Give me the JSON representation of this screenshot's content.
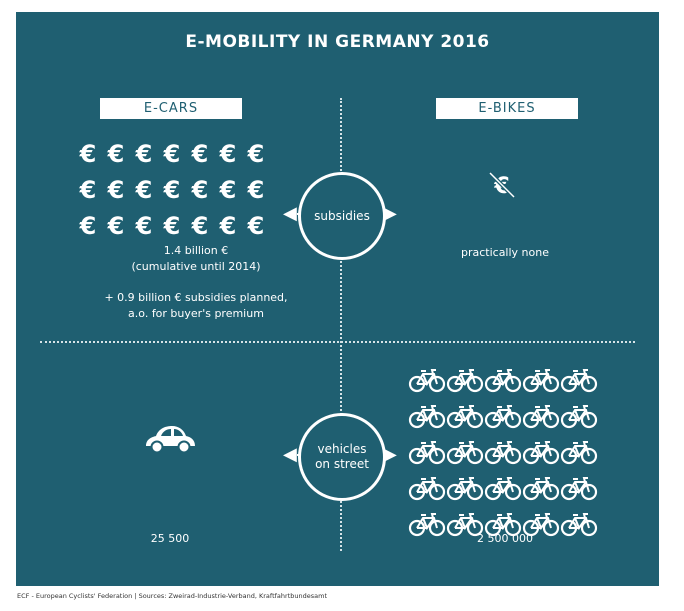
{
  "title": "E-MOBILITY IN GERMANY 2016",
  "headers": {
    "left": "E-CARS",
    "right": "E-BIKES"
  },
  "subsidies": {
    "circle_label": "subsidies",
    "ecars_line1": "1.4 billion €",
    "ecars_line2": "(cumulative until 2014)",
    "ecars_line3": "+ 0.9 billion € subsidies planned,",
    "ecars_line4": "a.o. for buyer's premium",
    "ebikes_text": "practically none",
    "euro_symbol": "€"
  },
  "vehicles": {
    "circle_label_1": "vehicles",
    "circle_label_2": "on street",
    "ecars_count": "25 500",
    "ebikes_count": "2 500 000"
  },
  "icons": {
    "euro_rows": 3,
    "euro_cols": 7,
    "bike_rows": 5,
    "bike_cols": 5,
    "car": "car-icon",
    "bike": "bicycle-icon",
    "no_euro": "crossed-euro-icon"
  },
  "colors": {
    "panel": "#1f5f71",
    "foreground": "#ffffff"
  },
  "footer": "ECF - European Cyclists' Federation | Sources: Zweirad-Industrie-Verband, Kraftfahrtbundesamt"
}
